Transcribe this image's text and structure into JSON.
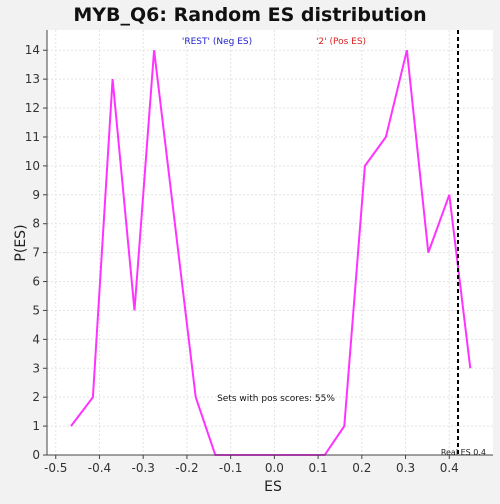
{
  "chart_data": {
    "type": "line",
    "title": "MYB_Q6: Random ES distribution",
    "xlabel": "ES",
    "ylabel": "P(ES)",
    "xlim": [
      -0.52,
      0.5
    ],
    "ylim": [
      0,
      14.7
    ],
    "grid": true,
    "x_ticks": [
      -0.5,
      -0.4,
      -0.3,
      -0.2,
      -0.1,
      0.0,
      0.1,
      0.2,
      0.3,
      0.4
    ],
    "x_tick_labels": [
      "-0.5",
      "-0.4",
      "-0.3",
      "-0.2",
      "-0.1",
      "0.0",
      "0.1",
      "0.2",
      "0.3",
      "0.4"
    ],
    "y_ticks": [
      0,
      1,
      2,
      3,
      4,
      5,
      6,
      7,
      8,
      9,
      10,
      11,
      12,
      13,
      14
    ],
    "y_tick_labels": [
      "0",
      "1",
      "2",
      "3",
      "4",
      "5",
      "6",
      "7",
      "8",
      "9",
      "10",
      "11",
      "12",
      "13",
      "14"
    ],
    "series": [
      {
        "color": "#ff33ff",
        "x": [
          -0.465,
          -0.415,
          -0.37,
          -0.32,
          -0.275,
          -0.18,
          -0.135,
          0.115,
          0.16,
          0.207,
          0.255,
          0.303,
          0.352,
          0.4,
          0.448
        ],
        "y": [
          1,
          2,
          13,
          5,
          14,
          2,
          0,
          0,
          1,
          10,
          11,
          14,
          7,
          9,
          3
        ]
      }
    ],
    "real_es": {
      "value": 0.42,
      "label": "Real ES 0.4",
      "color": "#000000"
    },
    "annotations": {
      "neg_label": "'REST' (Neg ES)",
      "neg_color": "#2222cc",
      "pos_label": "'2' (Pos ES)",
      "pos_color": "#dd2222",
      "pos_scores_text": "Sets with pos scores: 55%"
    }
  }
}
